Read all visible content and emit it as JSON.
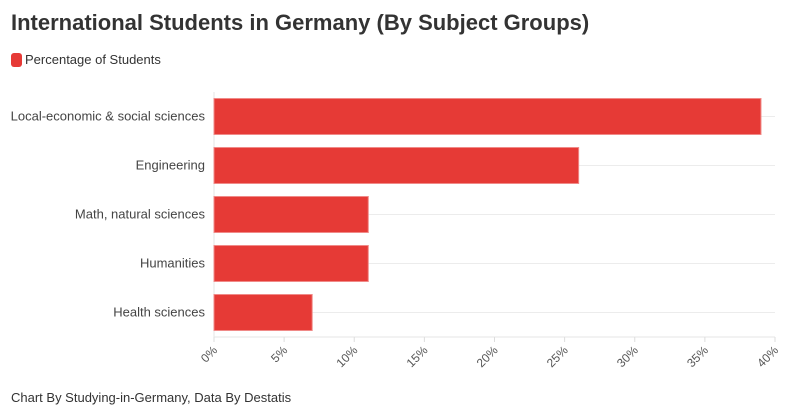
{
  "chart_data": {
    "type": "bar",
    "orientation": "horizontal",
    "title": "International Students in Germany (By Subject Groups)",
    "categories": [
      "Local-economic & social sciences",
      "Engineering",
      "Math, natural sciences",
      "Humanities",
      "Health sciences"
    ],
    "series": [
      {
        "name": "Percentage of Students",
        "values": [
          39,
          26,
          11,
          11,
          7
        ],
        "color": "#e63a36"
      }
    ],
    "xlim": [
      0,
      40
    ],
    "xticks": [
      "0%",
      "5%",
      "10%",
      "15%",
      "20%",
      "25%",
      "30%",
      "35%",
      "40%"
    ],
    "grid": true,
    "legend": "top-left",
    "footer": "Chart By Studying-in-Germany, Data By Destatis"
  }
}
